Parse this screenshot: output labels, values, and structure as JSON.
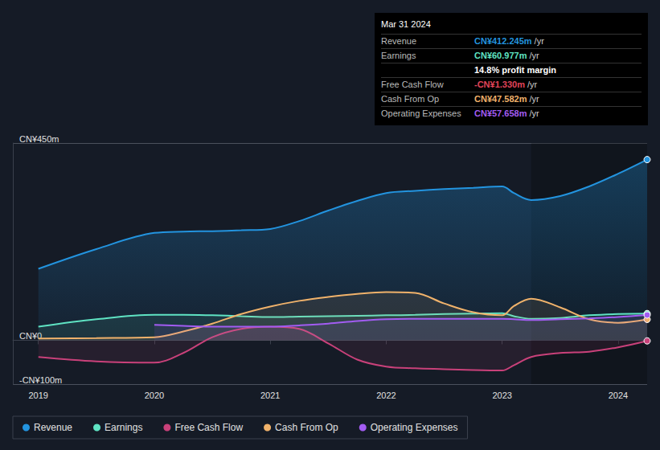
{
  "chart_data": {
    "type": "line",
    "x": [
      2019,
      2019.5,
      2020,
      2020.25,
      2020.5,
      2020.75,
      2021,
      2021.25,
      2021.5,
      2021.75,
      2022,
      2022.25,
      2022.5,
      2022.75,
      2023,
      2023.1,
      2023.25,
      2023.5,
      2023.75,
      2024,
      2024.25
    ],
    "xlim": [
      2018.78,
      2024.25
    ],
    "xticks": [
      2019,
      2020,
      2021,
      2022,
      2023,
      2024
    ],
    "ylim": [
      -100,
      450
    ],
    "yticks": [
      {
        "value": -100,
        "label": "-CN¥100m"
      },
      {
        "value": 0,
        "label": "CN¥0"
      },
      {
        "value": 450,
        "label": "CN¥450m"
      }
    ],
    "grid": true,
    "legend": "bottom",
    "series": [
      {
        "name": "Revenue",
        "color": "#2394df",
        "values": [
          163,
          208,
          245,
          248,
          249,
          251,
          254,
          272,
          296,
          318,
          336,
          341,
          345,
          348,
          351,
          336,
          320,
          329,
          351,
          380,
          412.245
        ]
      },
      {
        "name": "Earnings",
        "color": "#5fe3c3",
        "values": [
          31,
          48,
          58,
          58,
          57,
          55,
          53,
          54,
          55,
          56,
          57,
          58,
          60,
          61,
          62,
          55,
          49,
          51,
          57,
          60,
          60.977
        ]
      },
      {
        "name": "Free Cash Flow",
        "color": "#c9417a",
        "values": [
          -38,
          -48,
          -51,
          -29,
          7,
          26,
          31,
          26,
          -7,
          -44,
          -60,
          -64,
          -66,
          -68,
          -69,
          -57,
          -38,
          -29,
          -26,
          -16,
          -1.33
        ]
      },
      {
        "name": "Cash From Op",
        "color": "#f0b26b",
        "values": [
          4,
          5,
          7,
          20,
          38,
          60,
          77,
          90,
          99,
          106,
          110,
          108,
          84,
          64,
          57,
          78,
          95,
          75,
          48,
          40,
          47.582
        ]
      },
      {
        "name": "Operating Expenses",
        "color": "#a25cf2",
        "values": [
          null,
          null,
          35,
          33,
          31,
          31,
          31,
          34,
          38,
          44,
          48,
          49,
          49,
          49,
          49,
          48,
          46,
          48,
          50,
          53,
          57.658
        ]
      }
    ],
    "annotations": {
      "title": "Mar 31 2024",
      "rows": [
        {
          "label": "Revenue",
          "value": "CN¥412.245m",
          "unit": "/yr",
          "color": "#2394df"
        },
        {
          "label": "Earnings",
          "value": "CN¥60.977m",
          "unit": "/yr",
          "color": "#5fe3c3"
        },
        {
          "text": "14.8% profit margin",
          "color": "#ffffff"
        },
        {
          "label": "Free Cash Flow",
          "value": "-CN¥1.330m",
          "unit": "/yr",
          "color": "#e0445a"
        },
        {
          "label": "Cash From Op",
          "value": "CN¥47.582m",
          "unit": "/yr",
          "color": "#f0b26b"
        },
        {
          "label": "Operating Expenses",
          "value": "CN¥57.658m",
          "unit": "/yr",
          "color": "#a25cf2"
        }
      ]
    }
  }
}
